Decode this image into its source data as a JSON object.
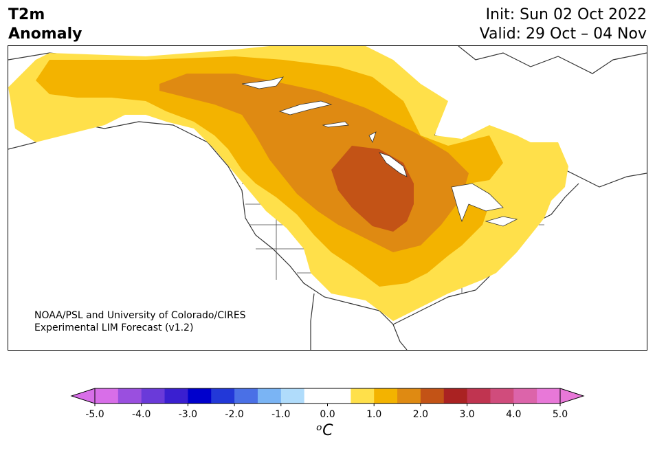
{
  "title": {
    "left_line1": "T2m",
    "left_line2": "Anomaly"
  },
  "header": {
    "init": "Init: Sun 02 Oct 2022",
    "valid": "Valid: 29 Oct – 04 Nov"
  },
  "credit": {
    "line1": "NOAA/PSL and University of Colorado/CIRES",
    "line2": "Experimental LIM Forecast (v1.2)"
  },
  "colorbar": {
    "unit_label": "ᵒC",
    "ticks": [
      "-5.0",
      "-4.0",
      "-3.0",
      "-2.0",
      "-1.0",
      "0.0",
      "1.0",
      "2.0",
      "3.0",
      "4.0",
      "5.0"
    ],
    "colors": [
      "#d86ee8",
      "#9a4fdf",
      "#6a3ad9",
      "#3a1fd0",
      "#0000cc",
      "#2238d8",
      "#4a70e6",
      "#7ab4f4",
      "#b0dcfb",
      "#ffffff",
      "#ffffff",
      "#ffe04a",
      "#f3b300",
      "#df8a12",
      "#c35316",
      "#aa2222",
      "#c03450",
      "#d04c7c",
      "#dc64aa",
      "#e878d8"
    ],
    "under_color": "#d86ee8",
    "over_color": "#e878d8"
  },
  "map_colors": {
    "level1": "#ffe04a",
    "level2": "#f3b300",
    "level3": "#df8a12",
    "level4": "#c35316",
    "land_outline": "#333333"
  }
}
